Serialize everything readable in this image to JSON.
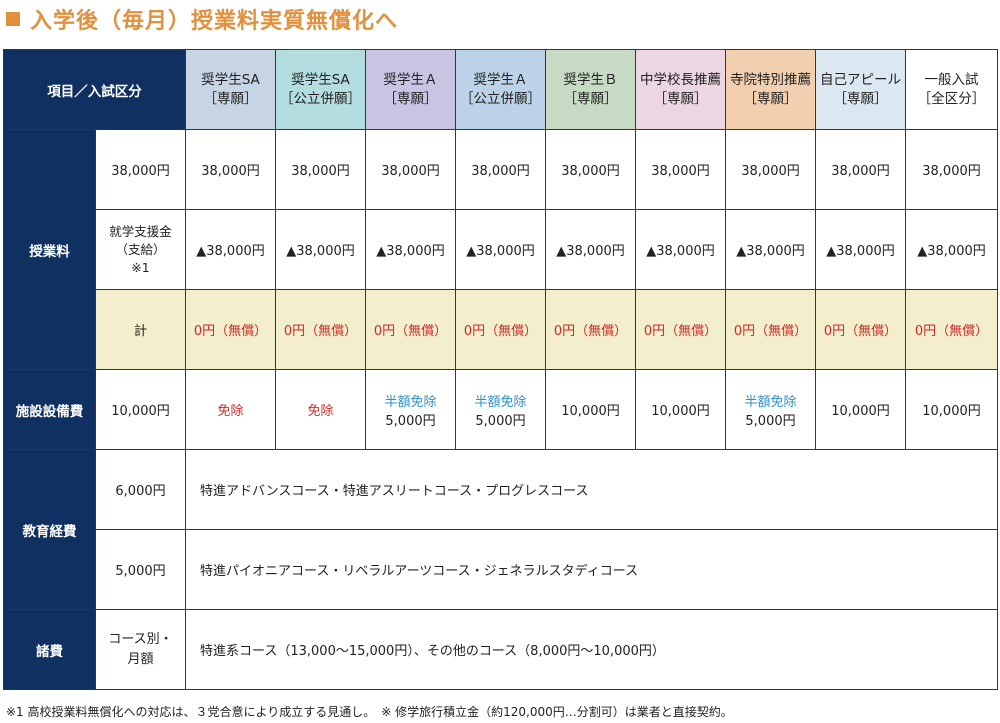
{
  "title": "入学後（毎月）授業料実質無償化へ",
  "header": {
    "corner": "項目／入試区分",
    "columns": [
      {
        "name": "奨学生SA",
        "sub": "［専願］"
      },
      {
        "name": "奨学生SA",
        "sub": "［公立併願］"
      },
      {
        "name": "奨学生Ａ",
        "sub": "［専願］"
      },
      {
        "name": "奨学生Ａ",
        "sub": "［公立併願］"
      },
      {
        "name": "奨学生Ｂ",
        "sub": "［専願］"
      },
      {
        "name": "中学校長推薦",
        "sub": "［専願］"
      },
      {
        "name": "寺院特別推薦",
        "sub": "［専願］"
      },
      {
        "name": "自己アピール",
        "sub": "［専願］"
      },
      {
        "name": "一般入試",
        "sub": "［全区分］"
      }
    ],
    "colors": [
      "#c7d4e4",
      "#b4dde0",
      "#c9c4e2",
      "#bcd2e8",
      "#c7dbc4",
      "#ebd6e1",
      "#f2cfaf",
      "#dbe7f1",
      "#ffffff"
    ]
  },
  "tuition": {
    "label": "授業料",
    "base": {
      "label": "38,000円",
      "values": [
        "38,000円",
        "38,000円",
        "38,000円",
        "38,000円",
        "38,000円",
        "38,000円",
        "38,000円",
        "38,000円",
        "38,000円"
      ]
    },
    "support": {
      "label1": "就学支援金",
      "label2": "（支給）",
      "label3": "※1",
      "values": [
        "▲38,000円",
        "▲38,000円",
        "▲38,000円",
        "▲38,000円",
        "▲38,000円",
        "▲38,000円",
        "▲38,000円",
        "▲38,000円",
        "▲38,000円"
      ]
    },
    "total": {
      "label": "計",
      "values": [
        "0円（無償）",
        "0円（無償）",
        "0円（無償）",
        "0円（無償）",
        "0円（無償）",
        "0円（無償）",
        "0円（無償）",
        "0円（無償）",
        "0円（無償）"
      ]
    }
  },
  "facility": {
    "label": "施設設備費",
    "amount": "10,000円",
    "values": [
      {
        "note": "免除",
        "value": ""
      },
      {
        "note": "免除",
        "value": ""
      },
      {
        "note": "半額免除",
        "value": "5,000円"
      },
      {
        "note": "半額免除",
        "value": "5,000円"
      },
      {
        "note": "",
        "value": "10,000円"
      },
      {
        "note": "",
        "value": "10,000円"
      },
      {
        "note": "半額免除",
        "value": "5,000円"
      },
      {
        "note": "",
        "value": "10,000円"
      },
      {
        "note": "",
        "value": "10,000円"
      }
    ]
  },
  "education": {
    "label": "教育経費",
    "rows": [
      {
        "amount": "6,000円",
        "courses": "特進アドバンスコース・特進アスリートコース・プログレスコース"
      },
      {
        "amount": "5,000円",
        "courses": "特進パイオニアコース・リベラルアーツコース・ジェネラルスタディコース"
      }
    ]
  },
  "misc": {
    "label": "諸費",
    "sub1": "コース別・",
    "sub2": "月額",
    "text": "特進系コース（13,000〜15,000円）、その他のコース（8,000円〜10,000円）"
  },
  "footer": "※1 高校授業料無償化への対応は、３党合意により成立する見通し。　※ 修学旅行積立金（約120,000円…分割可）は業者と直接契約。"
}
